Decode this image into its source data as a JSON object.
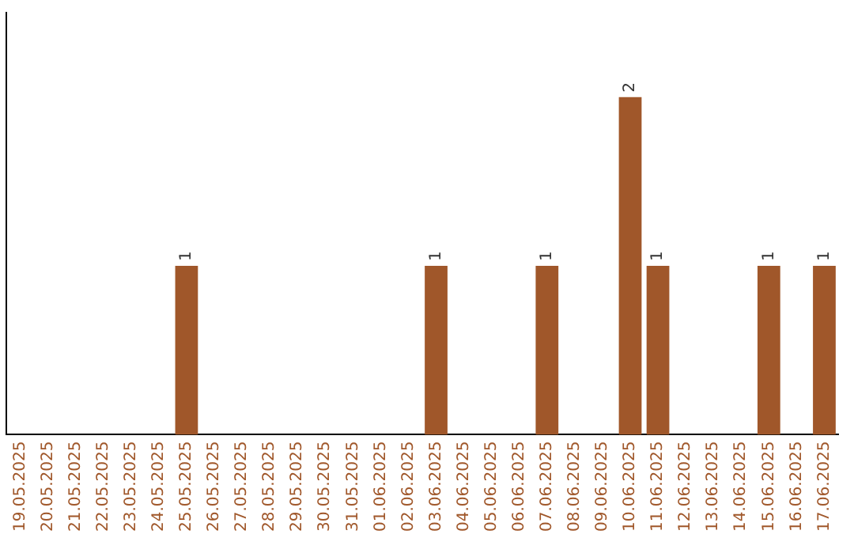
{
  "chart_data": {
    "type": "bar",
    "categories": [
      "19.05.2025",
      "20.05.2025",
      "21.05.2025",
      "22.05.2025",
      "23.05.2025",
      "24.05.2025",
      "25.05.2025",
      "26.05.2025",
      "27.05.2025",
      "28.05.2025",
      "29.05.2025",
      "30.05.2025",
      "31.05.2025",
      "01.06.2025",
      "02.06.2025",
      "03.06.2025",
      "04.06.2025",
      "05.06.2025",
      "06.06.2025",
      "07.06.2025",
      "08.06.2025",
      "09.06.2025",
      "10.06.2025",
      "11.06.2025",
      "12.06.2025",
      "13.06.2025",
      "14.06.2025",
      "15.06.2025",
      "16.06.2025",
      "17.06.2025"
    ],
    "values": [
      0,
      0,
      0,
      0,
      0,
      0,
      1,
      0,
      0,
      0,
      0,
      0,
      0,
      0,
      0,
      1,
      0,
      0,
      0,
      1,
      0,
      0,
      2,
      1,
      0,
      0,
      0,
      1,
      0,
      1
    ],
    "value_labels": [
      null,
      null,
      null,
      null,
      null,
      null,
      "1",
      null,
      null,
      null,
      null,
      null,
      null,
      null,
      null,
      "1",
      null,
      null,
      null,
      "1",
      null,
      null,
      "2",
      "1",
      null,
      null,
      null,
      "1",
      null,
      "1"
    ],
    "color": "#a0572a",
    "grid": false,
    "legend": false,
    "tick_labels": "x"
  }
}
